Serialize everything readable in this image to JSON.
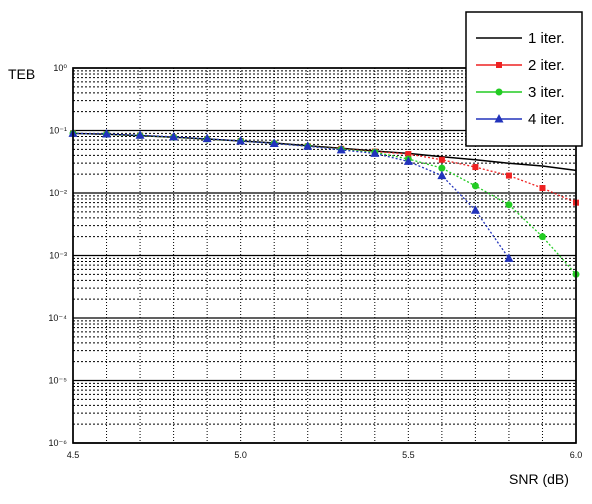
{
  "chart_data": {
    "type": "line",
    "xlabel": "SNR (dB)",
    "ylabel": "TEB",
    "xlim": [
      4.5,
      6.0
    ],
    "ylim": [
      1e-06,
      1
    ],
    "yscale": "log",
    "grid": true,
    "legend_position": "top-right",
    "x_ticks": [
      "4.5",
      "5.0",
      "5.5",
      "6.0"
    ],
    "y_ticks": [
      "10⁰",
      "10⁻¹",
      "10⁻²",
      "10⁻³",
      "10⁻⁴",
      "10⁻⁵",
      "10⁻⁶"
    ],
    "series": [
      {
        "name": "1 iter.",
        "color": "#000000",
        "marker": "none",
        "x": [
          4.5,
          4.6,
          4.7,
          4.8,
          4.9,
          5.0,
          5.1,
          5.2,
          5.3,
          5.4,
          5.5,
          5.6,
          5.7,
          5.8,
          5.9,
          6.0
        ],
        "y": [
          0.09,
          0.087,
          0.083,
          0.078,
          0.073,
          0.068,
          0.063,
          0.057,
          0.052,
          0.047,
          0.043,
          0.038,
          0.034,
          0.03,
          0.027,
          0.023
        ]
      },
      {
        "name": "2 iter.",
        "color": "#ee2222",
        "marker": "square",
        "x": [
          4.5,
          4.6,
          4.7,
          4.8,
          4.9,
          5.0,
          5.1,
          5.2,
          5.3,
          5.4,
          5.5,
          5.6,
          5.7,
          5.8,
          5.9,
          6.0
        ],
        "y": [
          0.09,
          0.087,
          0.083,
          0.078,
          0.073,
          0.068,
          0.062,
          0.056,
          0.051,
          0.046,
          0.042,
          0.034,
          0.026,
          0.019,
          0.012,
          0.007
        ]
      },
      {
        "name": "3 iter.",
        "color": "#22cc22",
        "marker": "circle",
        "x": [
          4.5,
          4.6,
          4.7,
          4.8,
          4.9,
          5.0,
          5.1,
          5.2,
          5.3,
          5.4,
          5.5,
          5.6,
          5.7,
          5.8,
          5.9,
          6.0
        ],
        "y": [
          0.09,
          0.087,
          0.083,
          0.078,
          0.073,
          0.068,
          0.062,
          0.056,
          0.05,
          0.045,
          0.035,
          0.025,
          0.013,
          0.0065,
          0.002,
          0.0005
        ]
      },
      {
        "name": "4 iter.",
        "color": "#2233bb",
        "marker": "triangle",
        "x": [
          4.5,
          4.6,
          4.7,
          4.8,
          4.9,
          5.0,
          5.1,
          5.2,
          5.3,
          5.4,
          5.5,
          5.6,
          5.7,
          5.8
        ],
        "y": [
          0.09,
          0.088,
          0.084,
          0.079,
          0.074,
          0.068,
          0.062,
          0.056,
          0.049,
          0.043,
          0.032,
          0.019,
          0.0053,
          0.0009
        ]
      }
    ]
  }
}
